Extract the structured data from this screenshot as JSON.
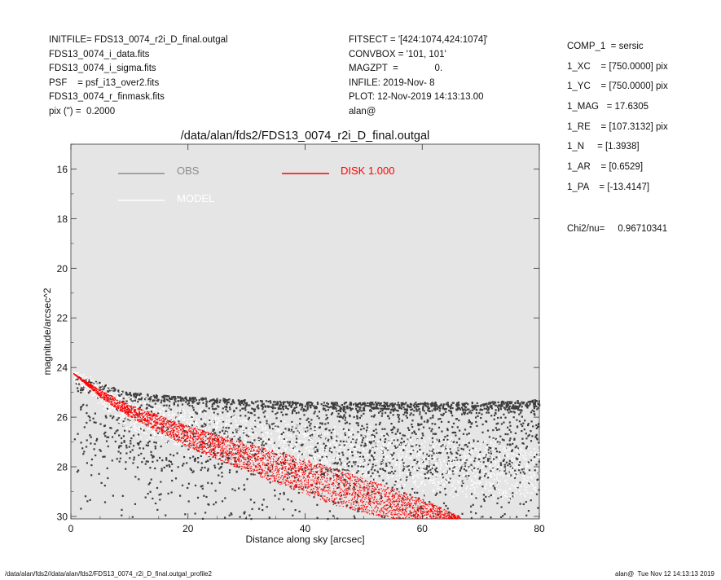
{
  "header_left": [
    "INITFILE= FDS13_0074_r2i_D_final.outgal",
    "FDS13_0074_i_data.fits",
    "FDS13_0074_i_sigma.fits",
    "PSF    = psf_i13_over2.fits",
    "FDS13_0074_r_finmask.fits",
    "pix (\") =  0.2000"
  ],
  "header_mid": [
    "FITSECT = '[424:1074,424:1074]'",
    "CONVBOX = '101, 101'",
    "MAGZPT  =              0.",
    "INFILE: 2019-Nov- 8",
    "PLOT: 12-Nov-2019 14:13:13.00",
    "alan@"
  ],
  "params": [
    "COMP_1  = sersic",
    "1_XC    = [750.0000] pix",
    "1_YC    = [750.0000] pix",
    "1_MAG   = 17.6305",
    "1_RE    = [107.3132] pix",
    "1_N     = [1.3938]",
    "1_AR    = [0.6529]",
    "1_PA    = [-13.4147]"
  ],
  "chi2": "Chi2/nu=     0.96710341",
  "footer_left": "/data/alan/fds2//data/alan/fds2/FDS13_0074_r2i_D_final.outgal_profile2",
  "footer_right": "alan@  Tue Nov 12 14:13:13 2019",
  "colors": {
    "panel_bg": "#e5e5e5",
    "obs": "#3c3c3c",
    "obs_legend": "#8c8c8c",
    "model": "#ffffff",
    "disk": "#ff0000"
  },
  "chart_data": {
    "type": "scatter",
    "title": "/data/alan/fds2/FDS13_0074_r2i_D_final.outgal",
    "xlabel": "Distance along sky [arcsec]",
    "ylabel": "magnitude/arcsec^2",
    "xlim": [
      0,
      80
    ],
    "ylim": [
      30.1,
      15.0
    ],
    "y_inverted": true,
    "x_ticks": [
      0,
      20,
      40,
      60,
      80
    ],
    "y_ticks": [
      16,
      18,
      20,
      22,
      24,
      26,
      28,
      30
    ],
    "legend": [
      {
        "label": "OBS",
        "color": "#8c8c8c"
      },
      {
        "label": "MODEL",
        "color": "#ffffff"
      },
      {
        "label": "DISK  1.000",
        "color": "#ff0000"
      }
    ],
    "series": [
      {
        "name": "OBS",
        "color": "#3c3c3c",
        "upper_envelope": {
          "x": [
            0.5,
            5,
            10,
            20,
            30,
            40,
            50,
            60,
            70,
            80
          ],
          "y": [
            24.3,
            24.6,
            25.0,
            25.2,
            25.3,
            25.4,
            25.4,
            25.4,
            25.4,
            25.3
          ]
        }
      },
      {
        "name": "MODEL",
        "color": "#ffffff",
        "band_upper": {
          "x": [
            0.5,
            10,
            20,
            30,
            40,
            50,
            60,
            70,
            80
          ],
          "y": [
            24.3,
            25.3,
            25.8,
            26.1,
            26.4,
            26.6,
            26.8,
            27.0,
            27.2
          ]
        },
        "band_lower": {
          "x": [
            0.5,
            10,
            20,
            30,
            40,
            50,
            60,
            70,
            80
          ],
          "y": [
            24.3,
            26.5,
            27.4,
            27.9,
            28.3,
            28.6,
            28.9,
            29.1,
            29.3
          ]
        }
      },
      {
        "name": "DISK  1.000",
        "color": "#ff0000",
        "band_upper": {
          "x": [
            0.5,
            5,
            10,
            20,
            30,
            40,
            50,
            60,
            66
          ],
          "y": [
            24.25,
            24.9,
            25.5,
            26.35,
            27.05,
            27.7,
            28.45,
            29.3,
            29.95
          ]
        },
        "band_lower": {
          "x": [
            0.5,
            5,
            10,
            20,
            30,
            40,
            45,
            50,
            55
          ],
          "y": [
            24.25,
            25.2,
            26.0,
            27.2,
            28.2,
            29.1,
            29.55,
            29.85,
            30.1
          ]
        }
      }
    ]
  }
}
